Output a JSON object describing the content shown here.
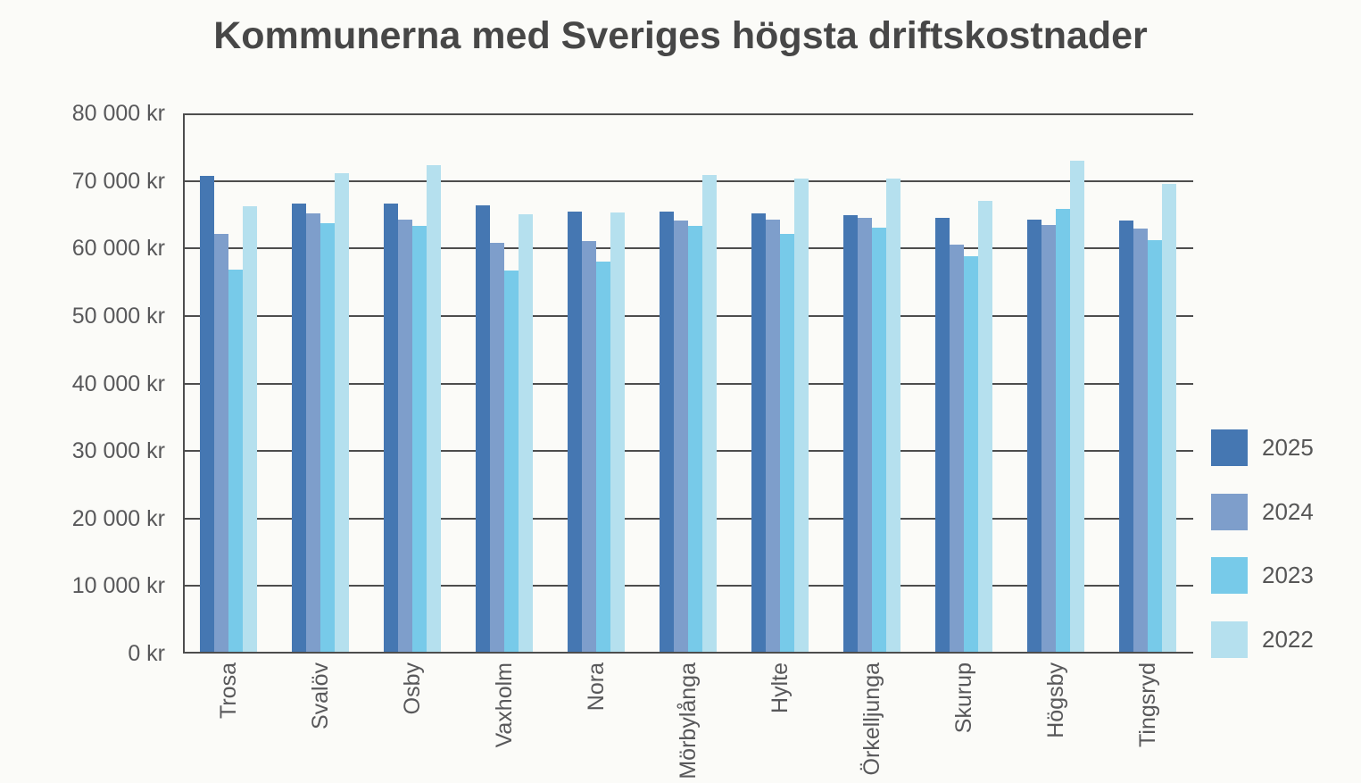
{
  "chart_data": {
    "type": "bar",
    "title": "Kommunerna med Sveriges högsta driftskostnader",
    "categories": [
      "Trosa",
      "Svalöv",
      "Osby",
      "Vaxholm",
      "Nora",
      "Mörbylånga",
      "Hylte",
      "Örkelljunga",
      "Skurup",
      "Högsby",
      "Tingsryd"
    ],
    "series": [
      {
        "name": "2025",
        "color": "#4577b2",
        "values": [
          70800,
          66700,
          66600,
          66400,
          65500,
          65400,
          65200,
          64900,
          64500,
          64300,
          64100
        ]
      },
      {
        "name": "2024",
        "color": "#7e9ecb",
        "values": [
          62100,
          65200,
          64300,
          60800,
          61100,
          64100,
          64300,
          64500,
          60600,
          63500,
          62900
        ]
      },
      {
        "name": "2023",
        "color": "#77cae9",
        "values": [
          56900,
          63700,
          63300,
          56700,
          58000,
          63400,
          62200,
          63100,
          58900,
          65900,
          61200
        ]
      },
      {
        "name": "2022",
        "color": "#b5e0ee",
        "values": [
          66300,
          71200,
          72300,
          65000,
          65300,
          70900,
          70400,
          70300,
          67100,
          73000,
          69500
        ]
      }
    ],
    "xlabel": "",
    "ylabel": "",
    "ylim": [
      0,
      80000
    ],
    "ytick_step": 10000,
    "ytick_labels": [
      "0 kr",
      "10 000 kr",
      "20 000 kr",
      "30 000 kr",
      "40 000 kr",
      "50 000 kr",
      "60 000 kr",
      "70 000 kr",
      "80 000 kr"
    ],
    "grid": true,
    "legend_position": "right",
    "colors": {
      "background": "#fbfbf8",
      "title_text": "#474747",
      "axis_text": "#58585a",
      "grid_line": "#4d4d4d"
    }
  }
}
